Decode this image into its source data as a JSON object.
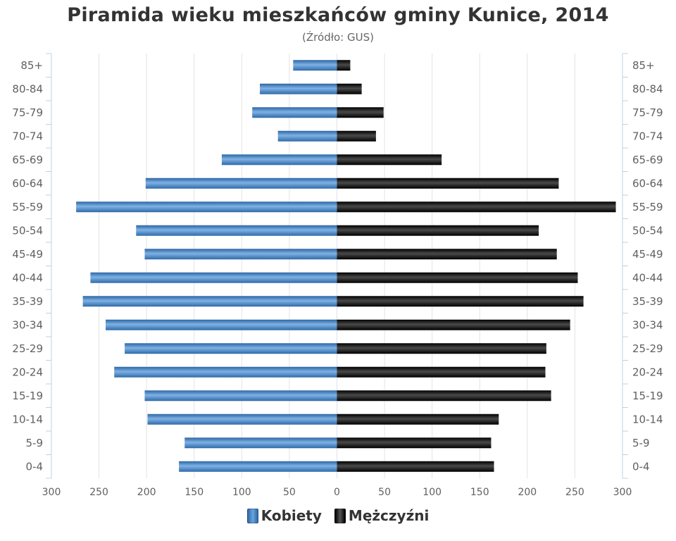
{
  "chart_data": {
    "type": "bar",
    "orientation": "horizontal-pyramid",
    "title": "Piramida wieku mieszkańców gminy Kunice, 2014",
    "subtitle": "(Źródło: GUS)",
    "categories": [
      "85+",
      "80-84",
      "75-79",
      "70-74",
      "65-69",
      "60-64",
      "55-59",
      "50-54",
      "45-49",
      "40-44",
      "35-39",
      "30-34",
      "25-29",
      "20-24",
      "15-19",
      "10-14",
      "5-9",
      "0-4"
    ],
    "series": [
      {
        "name": "Kobiety",
        "color": "#4a86c5",
        "values": [
          46,
          81,
          89,
          62,
          121,
          201,
          274,
          211,
          202,
          259,
          267,
          243,
          223,
          234,
          202,
          199,
          160,
          166
        ]
      },
      {
        "name": "Mężczyźni",
        "color": "#1a1a1a",
        "values": [
          14,
          26,
          49,
          41,
          110,
          233,
          293,
          212,
          231,
          253,
          259,
          245,
          220,
          219,
          225,
          170,
          162,
          165
        ]
      }
    ],
    "xlim": [
      -300,
      300
    ],
    "xticks": [
      300,
      250,
      200,
      150,
      100,
      50,
      0,
      50,
      100,
      150,
      200,
      250,
      300
    ],
    "grid": true,
    "legend_position": "bottom-center"
  }
}
